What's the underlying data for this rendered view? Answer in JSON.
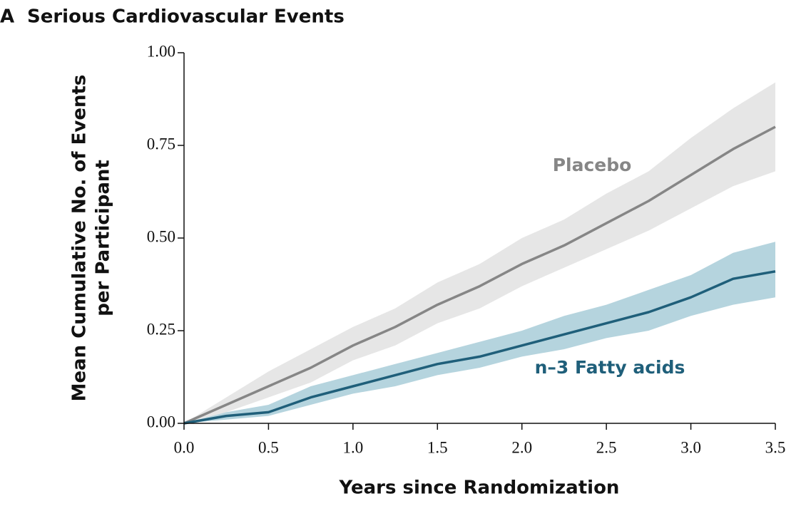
{
  "chart_data": {
    "type": "line",
    "panel": "A",
    "title": "Serious Cardiovascular Events",
    "x_label": "Years since Randomization",
    "y_label": [
      "Mean Cumulative No. of Events",
      "per Participant"
    ],
    "x": [
      0,
      0.25,
      0.5,
      0.75,
      1.0,
      1.25,
      1.5,
      1.75,
      2.0,
      2.25,
      2.5,
      2.75,
      3.0,
      3.25,
      3.5
    ],
    "series": [
      {
        "name": "Placebo",
        "color": "#868686",
        "band_color": "#e2e2e2",
        "values": [
          0,
          0.05,
          0.1,
          0.15,
          0.21,
          0.26,
          0.32,
          0.37,
          0.43,
          0.48,
          0.54,
          0.6,
          0.67,
          0.74,
          0.8
        ],
        "lower": [
          0,
          0.03,
          0.07,
          0.11,
          0.17,
          0.21,
          0.27,
          0.31,
          0.37,
          0.42,
          0.47,
          0.52,
          0.58,
          0.64,
          0.68
        ],
        "upper": [
          0,
          0.07,
          0.14,
          0.2,
          0.26,
          0.31,
          0.38,
          0.43,
          0.5,
          0.55,
          0.62,
          0.68,
          0.77,
          0.85,
          0.92
        ]
      },
      {
        "name": "n–3 Fatty acids",
        "color": "#1f5f7a",
        "band_color": "#a8ccd8",
        "values": [
          0,
          0.02,
          0.03,
          0.07,
          0.1,
          0.13,
          0.16,
          0.18,
          0.21,
          0.24,
          0.27,
          0.3,
          0.34,
          0.39,
          0.41
        ],
        "lower": [
          0,
          0.01,
          0.02,
          0.05,
          0.08,
          0.1,
          0.13,
          0.15,
          0.18,
          0.2,
          0.23,
          0.25,
          0.29,
          0.32,
          0.34
        ],
        "upper": [
          0,
          0.03,
          0.05,
          0.1,
          0.13,
          0.16,
          0.19,
          0.22,
          0.25,
          0.29,
          0.32,
          0.36,
          0.4,
          0.46,
          0.49
        ]
      }
    ],
    "xlim": [
      0,
      3.5
    ],
    "xticks": [
      {
        "value": 0,
        "label": "0.0"
      },
      0.5,
      {
        "value": 1,
        "label": "1.0"
      },
      1.5,
      {
        "value": 2,
        "label": "2.0"
      },
      2.5,
      {
        "value": 3,
        "label": "3.0"
      },
      3.5
    ],
    "ylim": [
      0,
      1
    ],
    "yticks": [
      {
        "value": 0,
        "label": "0.00"
      },
      {
        "value": 0.25,
        "label": "0.25"
      },
      {
        "value": 0.5,
        "label": "0.50"
      },
      {
        "value": 0.75,
        "label": "0.75"
      },
      {
        "value": 1,
        "label": "1.00"
      }
    ]
  }
}
